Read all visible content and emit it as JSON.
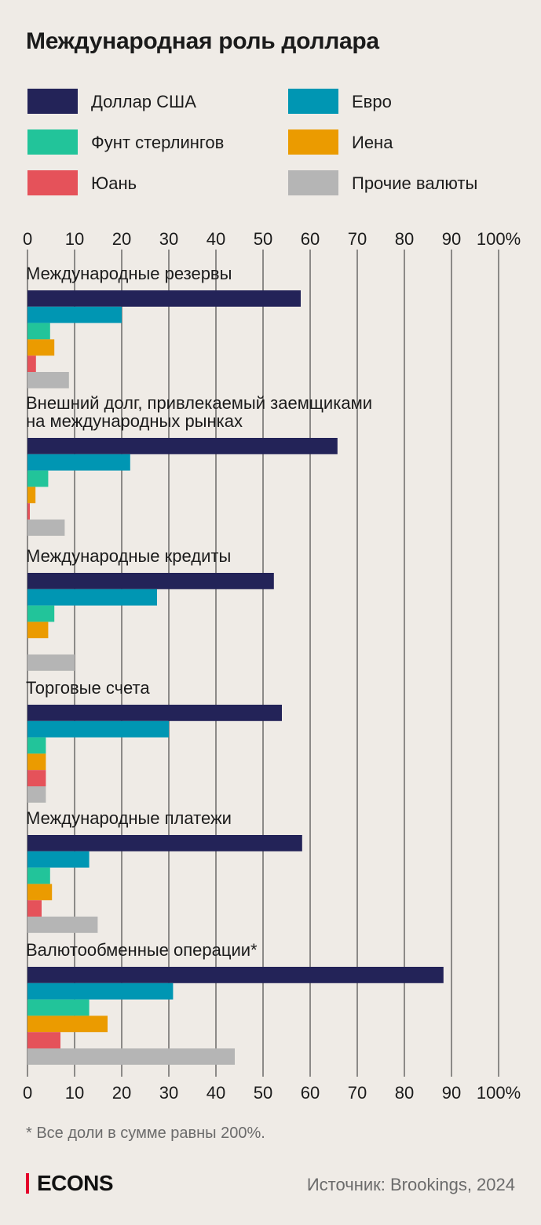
{
  "title": "Международная роль доллара",
  "footnote": "* Все доли в сумме равны 200%.",
  "brand": "ECONS",
  "source": "Источник: Brookings, 2024",
  "legend": [
    {
      "label": "Доллар США",
      "color": "#232358"
    },
    {
      "label": "Евро",
      "color": "#0096b3"
    },
    {
      "label": "Фунт стерлингов",
      "color": "#22c49a"
    },
    {
      "label": "Иена",
      "color": "#eb9b00"
    },
    {
      "label": "Юань",
      "color": "#e5525a"
    },
    {
      "label": "Прочие валюты",
      "color": "#b5b5b5"
    }
  ],
  "chart_data": {
    "type": "bar",
    "orientation": "horizontal",
    "xlim": [
      0,
      100
    ],
    "ticks": [
      "0",
      "10",
      "20",
      "30",
      "40",
      "50",
      "60",
      "70",
      "80",
      "90",
      "100%"
    ],
    "grid": true,
    "series_colors": [
      "#232358",
      "#0096b3",
      "#22c49a",
      "#eb9b00",
      "#e5525a",
      "#b5b5b5"
    ],
    "groups": [
      {
        "label": [
          "Международные резервы"
        ],
        "values": [
          58,
          20,
          4.8,
          5.7,
          1.8,
          8.8
        ]
      },
      {
        "label": [
          "Внешний долг, привлекаемый заемщиками",
          "на международных рынках"
        ],
        "values": [
          65.8,
          21.8,
          4.4,
          1.7,
          0.5,
          7.9
        ]
      },
      {
        "label": [
          "Международные кредиты"
        ],
        "values": [
          52.3,
          27.5,
          5.7,
          4.4,
          0,
          10
        ]
      },
      {
        "label": [
          "Торговые счета"
        ],
        "values": [
          54,
          30,
          3.9,
          3.9,
          3.9,
          3.9
        ]
      },
      {
        "label": [
          "Международные платежи"
        ],
        "values": [
          58.3,
          13.1,
          4.8,
          5.2,
          3,
          14.9
        ]
      },
      {
        "label": [
          "Валютообменные операции*"
        ],
        "values": [
          88.3,
          30.9,
          13.1,
          17,
          7,
          44
        ]
      }
    ]
  }
}
